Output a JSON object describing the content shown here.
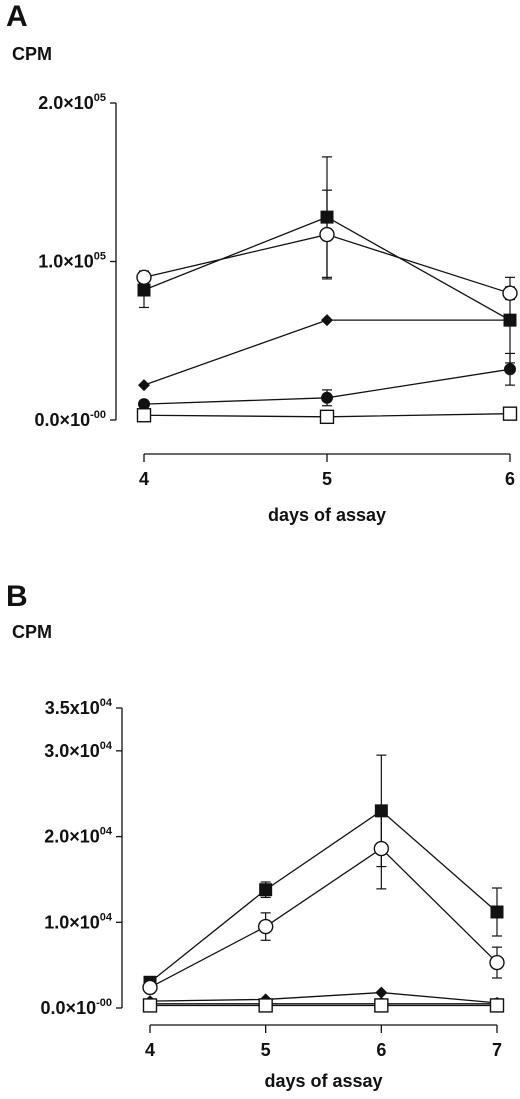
{
  "chart_data": [
    {
      "type": "line",
      "panel_label": "A",
      "ylabel": "CPM",
      "xlabel": "days of assay",
      "x": [
        4,
        5,
        6
      ],
      "ylim": [
        0,
        200000
      ],
      "xlim": [
        4,
        6
      ],
      "y_ticks": [
        {
          "value": 0,
          "mantissa": "0.0×10",
          "exp": "-00"
        },
        {
          "value": 100000,
          "mantissa": "1.0×10",
          "exp": "05"
        },
        {
          "value": 200000,
          "mantissa": "2.0×10",
          "exp": "05"
        }
      ],
      "x_ticks": [
        "4",
        "5",
        "6"
      ],
      "series": [
        {
          "marker": "filled-square",
          "values": [
            82000,
            128000,
            63000
          ],
          "errors": [
            11000,
            38000,
            27000
          ]
        },
        {
          "marker": "open-circle",
          "values": [
            90000,
            117000,
            80000
          ],
          "errors": [
            4000,
            28000,
            4000
          ]
        },
        {
          "marker": "filled-diamond",
          "values": [
            22000,
            63000,
            63000
          ],
          "errors": [
            0,
            0,
            0
          ]
        },
        {
          "marker": "filled-circle",
          "values": [
            10000,
            14000,
            32000
          ],
          "errors": [
            0,
            5000,
            10000
          ]
        },
        {
          "marker": "open-square",
          "values": [
            3000,
            2000,
            4000
          ],
          "errors": [
            0,
            0,
            0
          ]
        }
      ]
    },
    {
      "type": "line",
      "panel_label": "B",
      "ylabel": "CPM",
      "xlabel": "days of assay",
      "x": [
        4,
        5,
        6,
        7
      ],
      "ylim": [
        0,
        35000
      ],
      "xlim": [
        4,
        7
      ],
      "y_ticks": [
        {
          "value": 0,
          "mantissa": "0.0×10",
          "exp": "-00"
        },
        {
          "value": 10000,
          "mantissa": "1.0×10",
          "exp": "04"
        },
        {
          "value": 20000,
          "mantissa": "2.0×10",
          "exp": "04"
        },
        {
          "value": 30000,
          "mantissa": "3.0×10",
          "exp": "04"
        },
        {
          "value": 35000,
          "mantissa": "3.5x10",
          "exp": "04"
        }
      ],
      "x_ticks": [
        "4",
        "5",
        "6",
        "7"
      ],
      "series": [
        {
          "marker": "filled-square",
          "values": [
            3000,
            13800,
            23000,
            11200
          ],
          "errors": [
            0,
            900,
            6500,
            2800
          ]
        },
        {
          "marker": "open-circle",
          "values": [
            2400,
            9500,
            18600,
            5300
          ],
          "errors": [
            0,
            1600,
            4700,
            1800
          ]
        },
        {
          "marker": "filled-diamond",
          "values": [
            800,
            1000,
            1800,
            600
          ],
          "errors": [
            0,
            0,
            0,
            0
          ]
        },
        {
          "marker": "filled-circle",
          "values": [
            500,
            500,
            500,
            500
          ],
          "errors": [
            0,
            0,
            0,
            0
          ]
        },
        {
          "marker": "open-square",
          "values": [
            300,
            300,
            300,
            300
          ],
          "errors": [
            0,
            0,
            0,
            0
          ]
        }
      ]
    }
  ]
}
